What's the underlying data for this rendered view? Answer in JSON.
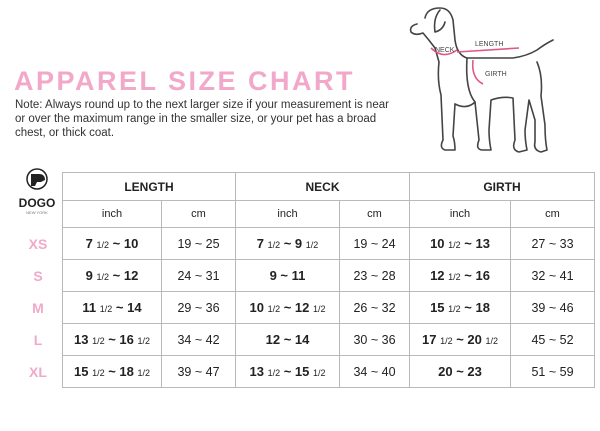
{
  "header": {
    "title": "APPAREL SIZE CHART",
    "note": "Note: Always round up to the next larger size if your measurement is near or over the maximum range in the smaller size, or your pet has a broad chest, or thick coat."
  },
  "diagram": {
    "labels": [
      "NECK",
      "LENGTH",
      "GIRTH"
    ]
  },
  "logo": {
    "name": "DOGO",
    "tagline": "NEW YORK"
  },
  "table": {
    "groups": [
      "LENGTH",
      "NECK",
      "GIRTH"
    ],
    "units": [
      "inch",
      "cm",
      "inch",
      "cm",
      "inch",
      "cm"
    ],
    "rows": [
      {
        "size": "XS",
        "cells": [
          "7 1/2 ~ 10",
          "19 ~ 25",
          "7 1/2 ~ 9 1/2",
          "19 ~ 24",
          "10 1/2 ~ 13",
          "27 ~ 33"
        ]
      },
      {
        "size": "S",
        "cells": [
          "9 1/2 ~ 12",
          "24 ~ 31",
          "9 ~ 11",
          "23 ~ 28",
          "12 1/2 ~ 16",
          "32 ~ 41"
        ]
      },
      {
        "size": "M",
        "cells": [
          "11 1/2 ~ 14",
          "29 ~ 36",
          "10 1/2 ~ 12 1/2",
          "26 ~ 32",
          "15 1/2 ~ 18",
          "39 ~ 46"
        ]
      },
      {
        "size": "L",
        "cells": [
          "13 1/2 ~ 16 1/2",
          "34 ~ 42",
          "12 ~ 14",
          "30 ~ 36",
          "17 1/2 ~ 20 1/2",
          "45 ~ 52"
        ]
      },
      {
        "size": "XL",
        "cells": [
          "15 1/2 ~ 18 1/2",
          "39 ~ 47",
          "13 1/2 ~ 15 1/2",
          "34 ~ 40",
          "20 ~ 23",
          "51 ~ 59"
        ]
      }
    ]
  }
}
